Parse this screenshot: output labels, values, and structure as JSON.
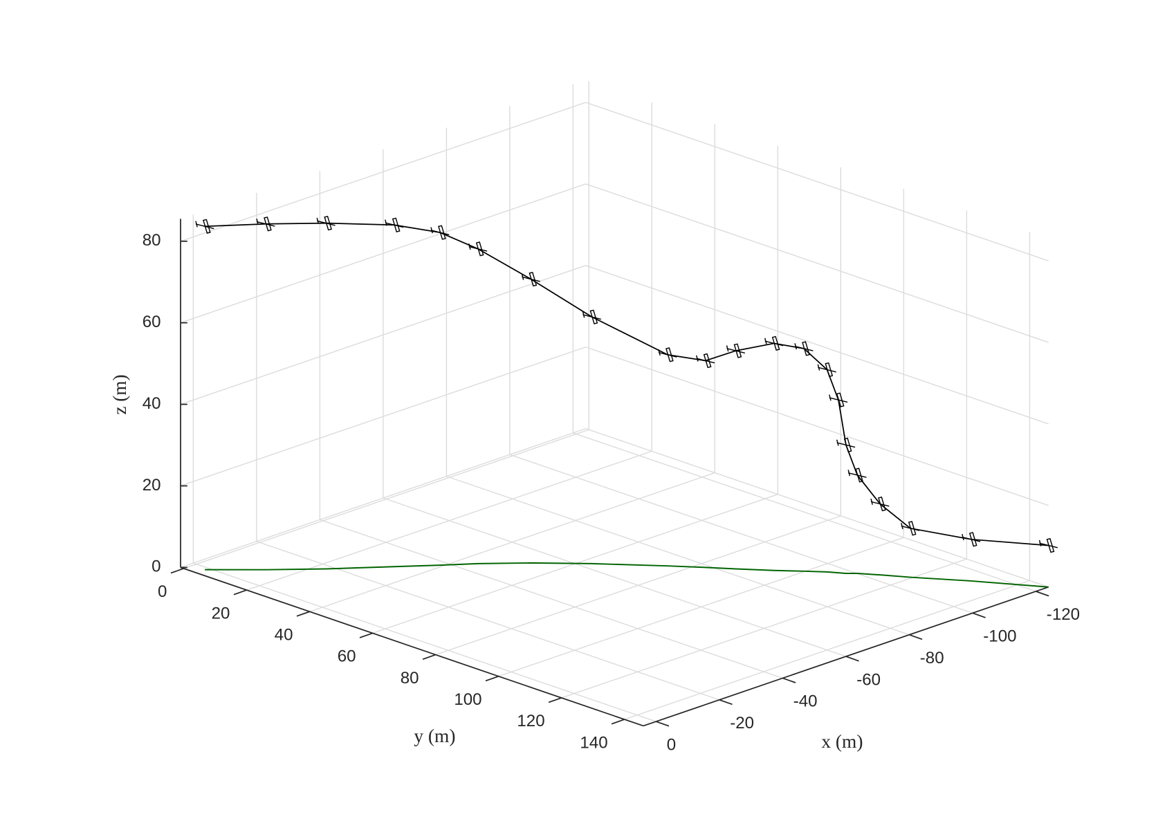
{
  "chart_data": {
    "type": "line3d",
    "x": [
      1.2,
      -8.4,
      -18.3,
      -30.1,
      -38.0,
      -44.7,
      -53.4,
      -62.7,
      -73.6,
      -78.9,
      -83.0,
      -88.3,
      -92.7,
      -96.0,
      -97.4,
      -98.3,
      -100.1,
      -103.0,
      -106.7,
      -114.6,
      -124
    ],
    "y": [
      3.9,
      13.6,
      22.8,
      32.6,
      39.2,
      44.5,
      52.6,
      62.6,
      75.7,
      82.4,
      87.9,
      94.7,
      99.8,
      103.8,
      106.0,
      107.5,
      109.3,
      113.6,
      119.5,
      130.9,
      146.0
    ],
    "z": [
      84.2,
      84.8,
      84.8,
      83.8,
      81.6,
      77.2,
      69.6,
      60.5,
      51.8,
      50.7,
      53.5,
      55.7,
      54.6,
      49.6,
      42.4,
      31.5,
      24.1,
      17.4,
      12.0,
      10.2,
      10.2
    ],
    "color": "#000000",
    "ground_track_color": "#006400",
    "xlabel": "x (m)",
    "ylabel": "y (m)",
    "zlabel": "z (m)",
    "xlim": [
      4,
      -124
    ],
    "ylim": [
      -1,
      146
    ],
    "zlim": [
      0,
      85.5
    ],
    "xticks": [
      0,
      -20,
      -40,
      -60,
      -80,
      -100,
      -120
    ],
    "yticks": [
      0,
      20,
      40,
      60,
      80,
      100,
      120,
      140
    ],
    "zticks": [
      0,
      20,
      40,
      60,
      80
    ],
    "grid": true
  }
}
